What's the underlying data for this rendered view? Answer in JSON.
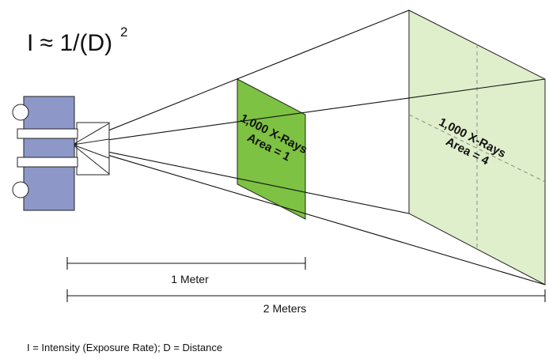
{
  "formula": {
    "main": "I ≈ 1/(D)",
    "exponent": "2"
  },
  "plane_near": {
    "line1": "1,000 X-Rays",
    "line2": "Area = 1",
    "color": "#7dc242"
  },
  "plane_far": {
    "line1": "1,000 X-Rays",
    "line2": "Area = 4",
    "color": "#dfeecb"
  },
  "dimension_1": {
    "label": "1 Meter"
  },
  "dimension_2": {
    "label": "2 Meters"
  },
  "caption": "I = Intensity (Exposure Rate); D = Distance",
  "source_color": "#8d98c9"
}
